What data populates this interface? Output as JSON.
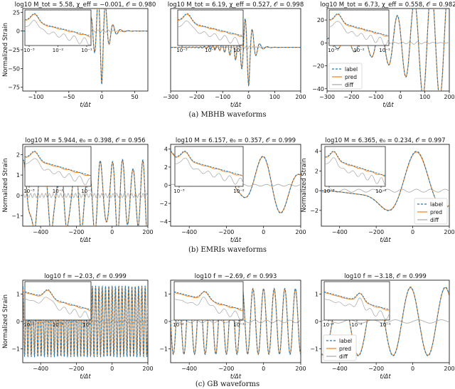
{
  "colors": {
    "label": "#1f77b4",
    "pred": "#ff7f0e",
    "diff": "#a6a6a6",
    "axis": "#000000"
  },
  "captions": [
    "(a)  MBHB waveforms",
    "(b)  EMRIs waveforms",
    "(c)  GB waveforms"
  ],
  "chart_data": [
    {
      "type": "line",
      "title": "log10 M_tot = 5.58, χ_eff = −0.001, 𝒪 = 0.980",
      "xlabel": "t/Δt",
      "ylabel": "Normalized Strain",
      "xlim": [
        -120,
        70
      ],
      "ylim": [
        -80,
        30
      ],
      "xticks": [
        -100,
        -50,
        0,
        50
      ],
      "yticks": [
        -75,
        -50,
        -25,
        0,
        25
      ],
      "ytick_labels": [
        "−75",
        "−50",
        "−25",
        "0",
        "25"
      ],
      "xtick_labels": [
        "−100",
        "−50",
        "0",
        "50"
      ],
      "series": [
        {
          "name": "label"
        },
        {
          "name": "pred"
        },
        {
          "name": "diff"
        }
      ],
      "inset": {
        "xscale": "log",
        "xticks": [
          "10⁻³",
          "10⁻²",
          "10⁻¹"
        ]
      },
      "legend": "none"
    },
    {
      "type": "line",
      "title": "log10 M_tot = 6.19, χ_eff = 0.527, 𝒪 = 0.998",
      "xlabel": "t/Δt",
      "ylabel": "",
      "xlim": [
        -300,
        200
      ],
      "ylim": [
        -45,
        40
      ],
      "xticks": [
        -300,
        -200,
        -100,
        0,
        100,
        200
      ],
      "yticks": [],
      "xtick_labels": [
        "−300",
        "−200",
        "−100",
        "0",
        "100",
        "200"
      ],
      "ytick_labels": [],
      "series": [
        {
          "name": "label"
        },
        {
          "name": "pred"
        },
        {
          "name": "diff"
        }
      ],
      "inset": {
        "xscale": "log",
        "xticks": [
          "10⁻³",
          "10⁻²",
          "10⁻¹"
        ]
      },
      "legend": "none"
    },
    {
      "type": "line",
      "title": "log10 M_tot = 6.73, χ_eff = 0.558, 𝒪 = 0.982",
      "xlabel": "t/Δt",
      "ylabel": "",
      "xlim": [
        -300,
        200
      ],
      "ylim": [
        -42,
        30
      ],
      "xticks": [
        -300,
        -200,
        -100,
        0,
        100,
        200
      ],
      "yticks": [
        -40,
        -20,
        0,
        20
      ],
      "xtick_labels": [
        "−300",
        "−200",
        "−100",
        "0",
        "100",
        "200"
      ],
      "ytick_labels": [
        "−40",
        "−20",
        "0",
        "20"
      ],
      "series": [
        {
          "name": "label"
        },
        {
          "name": "pred"
        },
        {
          "name": "diff"
        }
      ],
      "inset": {
        "xscale": "log",
        "xticks": [
          "10⁻³",
          "10⁻²",
          "10⁻¹"
        ]
      },
      "legend": "lower-left"
    },
    {
      "type": "line",
      "title": "log10 M = 5.944, e₀ = 0.398, 𝒪 = 0.956",
      "xlabel": "t/Δt",
      "ylabel": "Normalized Strain",
      "xlim": [
        -500,
        200
      ],
      "ylim": [
        -1.5,
        2.5
      ],
      "xticks": [
        -400,
        -200,
        0,
        200
      ],
      "yticks": [
        -1,
        0,
        1,
        2
      ],
      "xtick_labels": [
        "−400",
        "−200",
        "0",
        "200"
      ],
      "ytick_labels": [
        "−1",
        "0",
        "1",
        "2"
      ],
      "series": [
        {
          "name": "label"
        },
        {
          "name": "pred"
        },
        {
          "name": "diff"
        }
      ],
      "inset": {
        "xscale": "log",
        "xticks": [
          "10⁻³",
          "10⁻²",
          "10⁻¹"
        ]
      },
      "legend": "none"
    },
    {
      "type": "line",
      "title": "log10 M = 6.157, e₀ = 0.357, 𝒪 = 0.999",
      "xlabel": "t/Δt",
      "ylabel": "",
      "xlim": [
        -500,
        200
      ],
      "ylim": [
        -4.5,
        4.5
      ],
      "xticks": [
        -400,
        -200,
        0,
        200
      ],
      "yticks": [
        -4,
        -2,
        0,
        2,
        4
      ],
      "xtick_labels": [
        "−400",
        "−200",
        "0",
        "200"
      ],
      "ytick_labels": [
        "−4",
        "−2",
        "0",
        "2",
        "4"
      ],
      "series": [
        {
          "name": "label"
        },
        {
          "name": "pred"
        },
        {
          "name": "diff"
        }
      ],
      "inset": {
        "xscale": "log",
        "xticks": [
          "10⁻³",
          "10⁻²"
        ]
      },
      "legend": "none"
    },
    {
      "type": "line",
      "title": "log10 M = 6.365, e₀ = 0.234, 𝒪 = 0.997",
      "xlabel": "t/Δt",
      "ylabel": "Normalized Strain",
      "xlim": [
        -500,
        200
      ],
      "ylim": [
        -3.6,
        4.7
      ],
      "xticks": [
        -400,
        -200,
        0,
        200
      ],
      "yticks": [
        -2,
        0,
        2,
        4
      ],
      "xtick_labels": [
        "−400",
        "−200",
        "0",
        "200"
      ],
      "ytick_labels": [
        "−2",
        "0",
        "2",
        "4"
      ],
      "series": [
        {
          "name": "label"
        },
        {
          "name": "pred"
        },
        {
          "name": "diff"
        }
      ],
      "inset": {
        "xscale": "log",
        "xticks": [
          "10⁻³",
          "10⁻²"
        ]
      },
      "legend": "lower-right"
    },
    {
      "type": "line",
      "title": "log10 f = −2.03, 𝒪 = 0.999",
      "xlabel": "t/Δt",
      "ylabel": "Normalized Strain",
      "xlim": [
        -500,
        200
      ],
      "ylim": [
        -1.5,
        1.5
      ],
      "xticks": [
        -400,
        -200,
        0,
        200
      ],
      "yticks": [
        -1,
        0,
        1
      ],
      "xtick_labels": [
        "−400",
        "−200",
        "0",
        "200"
      ],
      "ytick_labels": [
        "−1",
        "0",
        "1"
      ],
      "series": [
        {
          "name": "label"
        },
        {
          "name": "pred"
        },
        {
          "name": "diff"
        }
      ],
      "inset": {
        "xscale": "log",
        "xticks": [
          "10⁻²",
          "10⁻¹",
          "10⁰"
        ]
      },
      "legend": "none"
    },
    {
      "type": "line",
      "title": "log10 f = −2.69, 𝒪 = 0.993",
      "xlabel": "t/Δt",
      "ylabel": "",
      "xlim": [
        -500,
        200
      ],
      "ylim": [
        -1.5,
        1.5
      ],
      "xticks": [
        -400,
        -200,
        0,
        200
      ],
      "yticks": [
        -1,
        0,
        1
      ],
      "xtick_labels": [
        "−400",
        "−200",
        "0",
        "200"
      ],
      "ytick_labels": [
        "−1",
        "0",
        "1"
      ],
      "series": [
        {
          "name": "label"
        },
        {
          "name": "pred"
        },
        {
          "name": "diff"
        }
      ],
      "inset": {
        "xscale": "log",
        "xticks": [
          "10⁻²",
          "10⁻¹"
        ]
      },
      "legend": "none"
    },
    {
      "type": "line",
      "title": "log10 f = −3.18, 𝒪 = 0.999",
      "xlabel": "t/Δt",
      "ylabel": "",
      "xlim": [
        -500,
        200
      ],
      "ylim": [
        -1.5,
        1.5
      ],
      "xticks": [
        -400,
        -200,
        0,
        200
      ],
      "yticks": [
        -1,
        0,
        1
      ],
      "xtick_labels": [
        "−400",
        "−200",
        "0",
        "200"
      ],
      "ytick_labels": [
        "−1",
        "0",
        "1"
      ],
      "series": [
        {
          "name": "label"
        },
        {
          "name": "pred"
        },
        {
          "name": "diff"
        }
      ],
      "inset": {
        "xscale": "log",
        "xticks": [
          "10⁻³",
          "10⁻²",
          "10⁻¹"
        ]
      },
      "legend": "lower-left"
    }
  ]
}
